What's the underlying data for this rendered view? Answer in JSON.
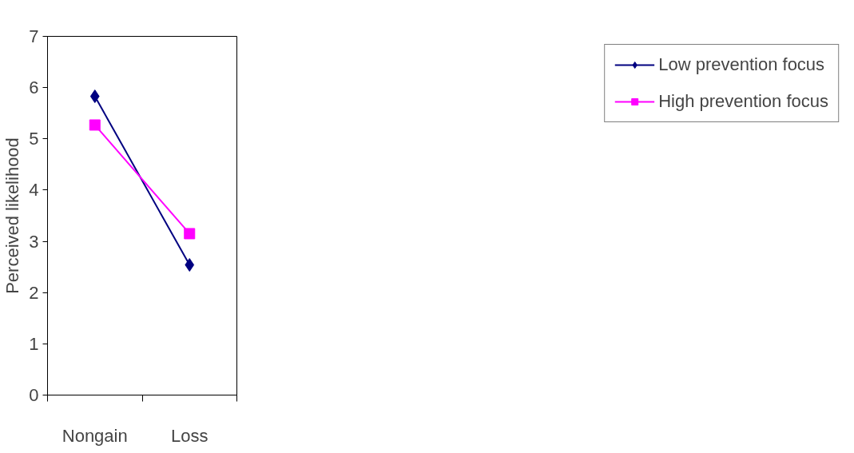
{
  "chart_data": {
    "type": "line",
    "ylabel": "Perceived likelihood",
    "categories": [
      "Nongain",
      "Loss"
    ],
    "series": [
      {
        "name": "Low prevention focus",
        "color": "#000080",
        "values": [
          5.83,
          2.54
        ],
        "marker": "diamond"
      },
      {
        "name": "High prevention focus",
        "color": "#ff00ff",
        "values": [
          5.27,
          3.15
        ],
        "marker": "square"
      }
    ],
    "ylim": [
      0,
      7
    ],
    "yticks": [
      0,
      1,
      2,
      3,
      4,
      5,
      6,
      7
    ],
    "grid": false,
    "legend": "right",
    "line_style": "solid"
  }
}
